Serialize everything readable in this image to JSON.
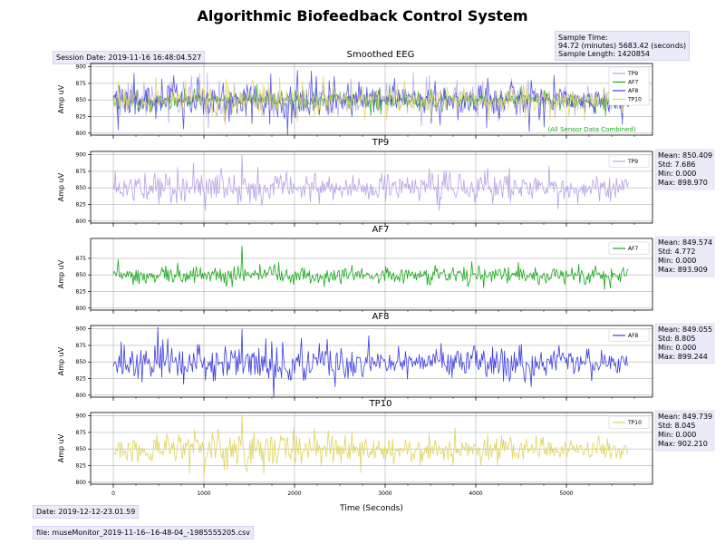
{
  "title": "Algorithmic Biofeedback Control System",
  "session_date": "Session Date: 2019-11-16 16:48:04.527",
  "sample_time": {
    "line1": "Sample Time:",
    "line2": "94.72 (minutes) 5683.42 (seconds)",
    "line3": "Sample Length: 1420854"
  },
  "footer": {
    "date": "Date: 2019-12-12-23.01.59",
    "file": "file: museMonitor_2019-11-16--16-48-04_-1985555205.csv"
  },
  "colors": {
    "TP9": "#b6a2e6",
    "AF7": "#17a817",
    "AF8": "#3d3de0",
    "TP10": "#e0d45c",
    "grid": "#b0b0b0"
  },
  "chart_data": [
    {
      "type": "line",
      "title": "Smoothed EEG",
      "ylabel": "Amp uV",
      "xlim": [
        -250,
        5950
      ],
      "ylim": [
        797,
        905
      ],
      "yticks": [
        800,
        825,
        850,
        875,
        900
      ],
      "xticks": [
        0,
        1000,
        2000,
        3000,
        4000,
        5000
      ],
      "legend": [
        "TP9",
        "AF7",
        "AF8",
        "TP10"
      ],
      "legend_position": "top-right",
      "annotation": "(All Sensor Data Combined)",
      "series": [
        {
          "name": "TP9",
          "x_range": [
            0,
            5683
          ],
          "center": 850.409,
          "std": 7.686
        },
        {
          "name": "AF7",
          "x_range": [
            0,
            5683
          ],
          "center": 849.574,
          "std": 4.772
        },
        {
          "name": "AF8",
          "x_range": [
            0,
            5683
          ],
          "center": 849.055,
          "std": 8.805
        },
        {
          "name": "TP10",
          "x_range": [
            0,
            5683
          ],
          "center": 849.739,
          "std": 8.045
        }
      ]
    },
    {
      "type": "line",
      "title": "TP9",
      "ylabel": "Amp uV",
      "xlim": [
        -250,
        5950
      ],
      "ylim": [
        797,
        905
      ],
      "yticks": [
        800,
        825,
        850,
        875,
        900
      ],
      "xticks": [
        0,
        1000,
        2000,
        3000,
        4000,
        5000
      ],
      "legend": [
        "TP9"
      ],
      "legend_position": "top-right",
      "series": [
        {
          "name": "TP9",
          "x_range": [
            0,
            5683
          ],
          "center": 850.409,
          "std": 7.686,
          "max": 898.97
        }
      ],
      "stats": {
        "mean": "Mean: 850.409",
        "std": "Std: 7.686",
        "min": "Min: 0.000",
        "max": "Max: 898.970"
      }
    },
    {
      "type": "line",
      "title": "AF7",
      "ylabel": "Amp uV",
      "xlim": [
        -250,
        5950
      ],
      "ylim": [
        797,
        905
      ],
      "yticks": [
        800,
        825,
        850,
        875
      ],
      "xticks": [
        0,
        1000,
        2000,
        3000,
        4000,
        5000
      ],
      "legend": [
        "AF7"
      ],
      "legend_position": "top-right",
      "series": [
        {
          "name": "AF7",
          "x_range": [
            0,
            5683
          ],
          "center": 849.574,
          "std": 4.772,
          "max": 893.909
        }
      ],
      "stats": {
        "mean": "Mean: 849.574",
        "std": "Std: 4.772",
        "min": "Min: 0.000",
        "max": "Max: 893.909"
      }
    },
    {
      "type": "line",
      "title": "AF8",
      "ylabel": "Amp uV",
      "xlim": [
        -250,
        5950
      ],
      "ylim": [
        797,
        905
      ],
      "yticks": [
        800,
        825,
        850,
        875,
        900
      ],
      "xticks": [
        0,
        1000,
        2000,
        3000,
        4000,
        5000
      ],
      "legend": [
        "AF8"
      ],
      "legend_position": "top-right",
      "series": [
        {
          "name": "AF8",
          "x_range": [
            0,
            5683
          ],
          "center": 849.055,
          "std": 8.805,
          "max": 899.244
        }
      ],
      "stats": {
        "mean": "Mean: 849.055",
        "std": "Std: 8.805",
        "min": "Min: 0.000",
        "max": "Max: 899.244"
      }
    },
    {
      "type": "line",
      "title": "TP10",
      "ylabel": "Amp uV",
      "xlabel": "Time (Seconds)",
      "xlim": [
        -250,
        5950
      ],
      "ylim": [
        797,
        905
      ],
      "yticks": [
        800,
        825,
        850,
        875,
        900
      ],
      "xticks": [
        0,
        1000,
        2000,
        3000,
        4000,
        5000
      ],
      "xticklabels": [
        "0",
        "1000",
        "2000",
        "3000",
        "4000",
        "5000"
      ],
      "legend": [
        "TP10"
      ],
      "legend_position": "top-right",
      "series": [
        {
          "name": "TP10",
          "x_range": [
            0,
            5683
          ],
          "center": 849.739,
          "std": 8.045,
          "max": 902.21
        }
      ],
      "stats": {
        "mean": "Mean: 849.739",
        "std": "Std: 8.045",
        "min": "Min: 0.000",
        "max": "Max: 902.210"
      }
    }
  ]
}
